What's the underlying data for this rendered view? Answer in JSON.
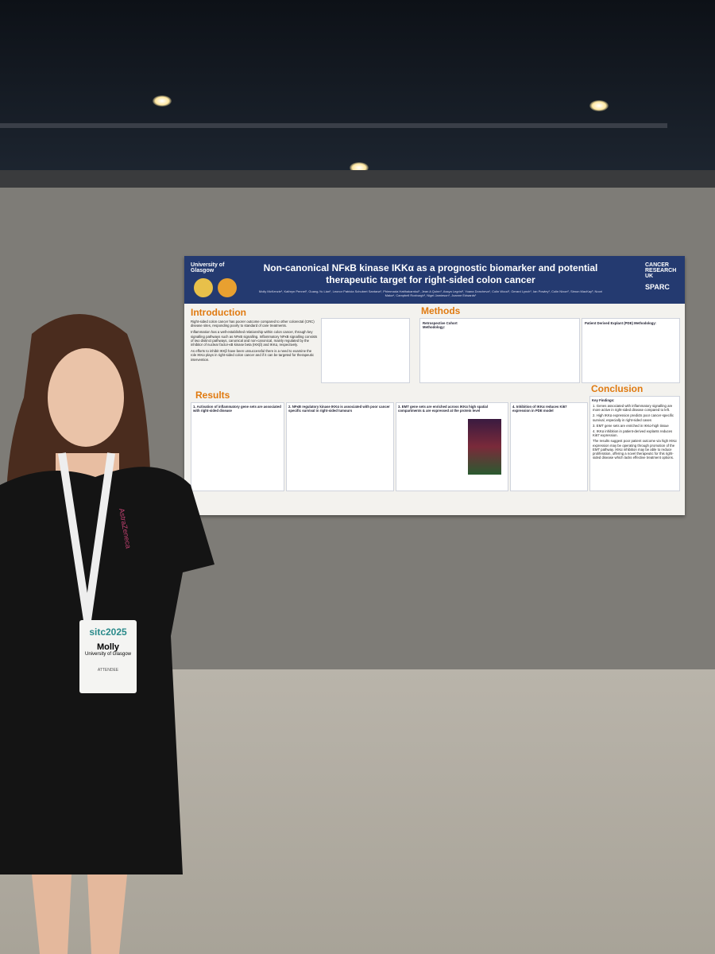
{
  "poster": {
    "title": "Non-canonical NFκB kinase IKKα as a prognostic biomarker and potential therapeutic target for right-sided colon cancer",
    "authors": "Molly McKenzie¹, Kathryn Pennel¹, Guang-Yu Lian¹, Leonor Patricia Schubert Santana¹, Phimmada Hatthakarnkul¹, Jean A Quinn¹, Assya Legrini¹, Yoana Doncheva¹, Colin Wood¹, Gerard Lynch¹, Ian Powley¹, Colin Nixon², Simon MacKay³, Noori Maka⁴, Campbell Roxburgh¹, Nigel Jamieson¹, Joanne Edwards¹",
    "logos": {
      "left": "University of Glasgow",
      "right_top": "CANCER RESEARCH UK",
      "right_bottom": "SPARC"
    },
    "introduction": {
      "heading": "Introduction",
      "paragraphs": [
        "Right-sided colon cancer has poorer outcome compared to other colorectal (CRC) disease sites, responding poorly to standard of care treatments.",
        "Inflammation has a well-established relationship within colon cancer, through key signalling pathways such as NFκB signalling. Inflammatory NFκB signalling consists of two distinct pathways, canonical and non-canonical, mainly regulated by the inhibitor of nuclear factor-κB kinase beta (IKKβ) and IKKα, respectively.",
        "As efforts to inhibit IKKβ have been unsuccessful there is a need to examine the role IKKα plays in right-sided colon cancer and if it can be targeted for therapeutic intervention."
      ]
    },
    "methods": {
      "heading": "Methods",
      "retrospective": "Retrospective Cohort Methodology:",
      "pde": "Patient Derived Explant (PDE) Methodology:"
    },
    "results": {
      "heading": "Results",
      "panels": [
        "1. Activation of inflammatory gene sets are associated with right-sided disease",
        "2. NFκB regulatory kinase IKKα is associated with poor cancer specific survival in right-sided tumours",
        "3. EMT gene sets are enriched across IKKα high spatial compartments & are expressed at the protein level",
        "4. Inhibition of IKKα reduces Ki67 expression in PDE model"
      ]
    },
    "conclusion": {
      "heading": "Conclusion",
      "key_findings": "Key Findings:",
      "findings": [
        "1. Genes associated with inflammatory signalling are more active in right-sided disease compared to left.",
        "2. High IKKα expression predicts poor cancer-specific survival, especially in right-sided cases",
        "3. EMT gene sets are enriched in IKKα-high tissue",
        "4. IKKα inhibition in patient-derived explants reduces Ki67 expression."
      ],
      "summary": "The results suggest poor patient outcome via high IKKα expression may be operating through promotion of the EMT pathway. IKKα inhibition may be able to reduce proliferation, offering a novel therapeutic for this right-sided disease which lacks effective treatment options."
    }
  },
  "badge": {
    "event": "sitc2025",
    "name": "Molly",
    "affiliation": "University of Glasgow",
    "role": "ATTENDEE"
  },
  "lanyard": "AstraZeneca"
}
